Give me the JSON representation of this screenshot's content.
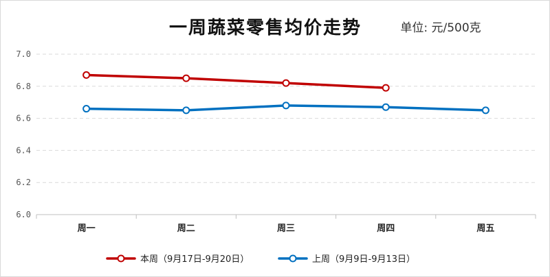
{
  "chart_data": {
    "type": "line",
    "title": "一周蔬菜零售均价走势",
    "unit_label": "单位: 元/500克",
    "xlabel": "",
    "ylabel": "",
    "categories": [
      "周一",
      "周二",
      "周三",
      "周四",
      "周五"
    ],
    "ylim": [
      6.0,
      7.0
    ],
    "yticks": [
      "6.0",
      "6.2",
      "6.4",
      "6.6",
      "6.8",
      "7.0"
    ],
    "grid": true,
    "legend_position": "bottom",
    "series": [
      {
        "name": "本周（9月17日-9月20日）",
        "color": "#c00000",
        "values": [
          6.87,
          6.85,
          6.82,
          6.79,
          null
        ]
      },
      {
        "name": "上周（9月9日-9月13日）",
        "color": "#0070c0",
        "values": [
          6.66,
          6.65,
          6.68,
          6.67,
          6.65
        ]
      }
    ]
  }
}
